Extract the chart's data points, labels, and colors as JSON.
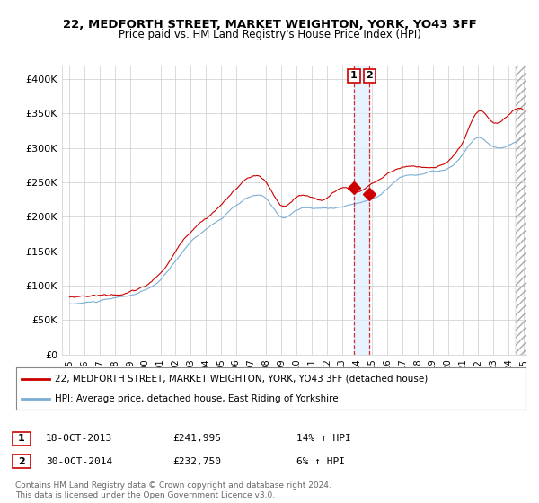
{
  "title": "22, MEDFORTH STREET, MARKET WEIGHTON, YORK, YO43 3FF",
  "subtitle": "Price paid vs. HM Land Registry's House Price Index (HPI)",
  "ylabel_ticks": [
    "£0",
    "£50K",
    "£100K",
    "£150K",
    "£200K",
    "£250K",
    "£300K",
    "£350K",
    "£400K"
  ],
  "ytick_vals": [
    0,
    50000,
    100000,
    150000,
    200000,
    250000,
    300000,
    350000,
    400000
  ],
  "ylim": [
    0,
    420000
  ],
  "xlim_start": 1994.5,
  "xlim_end": 2025.2,
  "sale1_x": 2013.79,
  "sale1_y": 241995,
  "sale2_x": 2014.83,
  "sale2_y": 232750,
  "sale1_label": "1",
  "sale2_label": "2",
  "vline_x1": 2013.79,
  "vline_x2": 2014.83,
  "legend_line1": "22, MEDFORTH STREET, MARKET WEIGHTON, YORK, YO43 3FF (detached house)",
  "legend_line2": "HPI: Average price, detached house, East Riding of Yorkshire",
  "table_row1": [
    "1",
    "18-OCT-2013",
    "£241,995",
    "14% ↑ HPI"
  ],
  "table_row2": [
    "2",
    "30-OCT-2014",
    "£232,750",
    "6% ↑ HPI"
  ],
  "footer": "Contains HM Land Registry data © Crown copyright and database right 2024.\nThis data is licensed under the Open Government Licence v3.0.",
  "price_color": "#cc0000",
  "hpi_color": "#7aaed4",
  "bg_color": "#ffffff",
  "grid_color": "#cccccc",
  "vline_color": "#cc0000",
  "band_color": "#ddeeff"
}
